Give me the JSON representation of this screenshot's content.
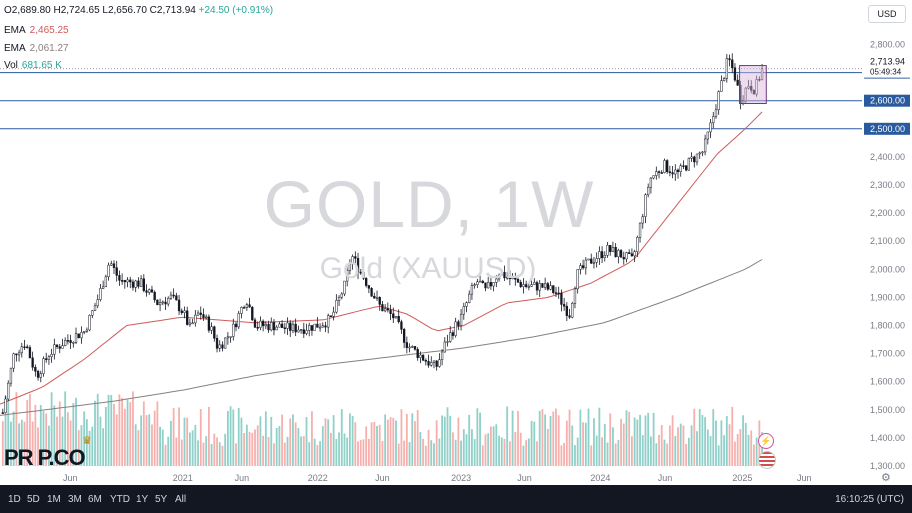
{
  "header": {
    "ohlc": "O2,689.80 H2,724.65 L2,656.70 C2,713.94",
    "change": "+24.50 (+0.91%)",
    "currency": "USD"
  },
  "indicators": [
    {
      "name": "EMA",
      "value": "2,465.25"
    },
    {
      "name": "EMA",
      "value": "2,061.27"
    },
    {
      "name": "Vol",
      "value": "681.65 K"
    }
  ],
  "watermark": {
    "symbol": "GOLD, 1W",
    "name": "Gold (XAUUSD)"
  },
  "logo": {
    "text": "PR P.CO"
  },
  "price_labels": {
    "last": "2,713.94",
    "countdown": "05:49:34",
    "levels": [
      "2,700.00",
      "2,600.00",
      "2,500.00"
    ]
  },
  "time_ranges": [
    "1D",
    "5D",
    "1M",
    "3M",
    "6M",
    "YTD",
    "1Y",
    "5Y",
    "All"
  ],
  "clock": "16:10:25 (UTC)",
  "colors": {
    "up": "#26a69a",
    "down": "#ef5350",
    "vol_up": "#8fd0c9",
    "vol_down": "#f5b0ae",
    "ema_fast": "#d05a5a",
    "ema_slow": "#8a7f7f",
    "box": "#d7b4dc",
    "level": "#2a5a9e"
  },
  "chart_data": {
    "type": "candlestick",
    "title": "GOLD, 1W",
    "y_axis": {
      "ticks": [
        1300,
        1400,
        1500,
        1600,
        1700,
        1800,
        1900,
        2000,
        2100,
        2200,
        2300,
        2400,
        2500,
        2600,
        2700,
        2800
      ],
      "tick_labels": [
        "1,300.00",
        "1,400.00",
        "1,500.00",
        "1,600.00",
        "1,700.00",
        "1,800.00",
        "1,900.00",
        "2,000.00",
        "2,100.00",
        "2,200.00",
        "2,300.00",
        "2,400.00",
        "2,500.00",
        "2,600.00",
        "2,700.00",
        "2,800.00"
      ],
      "range": [
        1300,
        2870
      ]
    },
    "x_axis": {
      "labels": [
        "Jun",
        "2021",
        "Jun",
        "2022",
        "Jun",
        "2023",
        "Jun",
        "2024",
        "Jun",
        "2025",
        "Jun"
      ],
      "positions": [
        0.2,
        1.0,
        1.42,
        1.96,
        2.42,
        2.98,
        3.43,
        3.97,
        4.43,
        4.98,
        5.42
      ],
      "range": [
        -0.3,
        6.0
      ]
    },
    "horizontal_levels": [
      2700,
      2600,
      2500
    ],
    "range_box": {
      "x": [
        4.96,
        5.15
      ],
      "y": [
        2590,
        2725
      ]
    },
    "close_keypoints": [
      [
        -0.28,
        1490
      ],
      [
        -0.2,
        1700
      ],
      [
        -0.12,
        1740
      ],
      [
        -0.04,
        1620
      ],
      [
        0.05,
        1700
      ],
      [
        0.15,
        1740
      ],
      [
        0.3,
        1780
      ],
      [
        0.4,
        1900
      ],
      [
        0.48,
        2030
      ],
      [
        0.55,
        1960
      ],
      [
        0.7,
        1950
      ],
      [
        0.82,
        1880
      ],
      [
        0.92,
        1900
      ],
      [
        1.0,
        1850
      ],
      [
        1.05,
        1790
      ],
      [
        1.12,
        1850
      ],
      [
        1.2,
        1790
      ],
      [
        1.25,
        1720
      ],
      [
        1.35,
        1780
      ],
      [
        1.45,
        1900
      ],
      [
        1.52,
        1800
      ],
      [
        1.65,
        1800
      ],
      [
        1.75,
        1790
      ],
      [
        1.85,
        1790
      ],
      [
        1.95,
        1800
      ],
      [
        2.05,
        1820
      ],
      [
        2.15,
        1940
      ],
      [
        2.2,
        2050
      ],
      [
        2.3,
        1960
      ],
      [
        2.4,
        1870
      ],
      [
        2.5,
        1830
      ],
      [
        2.6,
        1730
      ],
      [
        2.72,
        1680
      ],
      [
        2.8,
        1650
      ],
      [
        2.88,
        1750
      ],
      [
        2.98,
        1830
      ],
      [
        3.05,
        1920
      ],
      [
        3.1,
        1960
      ],
      [
        3.15,
        1920
      ],
      [
        3.25,
        1990
      ],
      [
        3.35,
        1960
      ],
      [
        3.45,
        1940
      ],
      [
        3.55,
        1940
      ],
      [
        3.65,
        1920
      ],
      [
        3.75,
        1840
      ],
      [
        3.8,
        1980
      ],
      [
        3.9,
        2030
      ],
      [
        4.02,
        2070
      ],
      [
        4.12,
        2050
      ],
      [
        4.2,
        2030
      ],
      [
        4.25,
        2150
      ],
      [
        4.32,
        2320
      ],
      [
        4.42,
        2370
      ],
      [
        4.52,
        2340
      ],
      [
        4.62,
        2390
      ],
      [
        4.7,
        2420
      ],
      [
        4.76,
        2520
      ],
      [
        4.82,
        2640
      ],
      [
        4.88,
        2750
      ],
      [
        4.92,
        2700
      ],
      [
        4.97,
        2600
      ],
      [
        5.02,
        2660
      ],
      [
        5.07,
        2640
      ],
      [
        5.12,
        2713.94
      ]
    ],
    "ema_fast_keypoints": [
      [
        -0.3,
        1520
      ],
      [
        0.0,
        1580
      ],
      [
        0.3,
        1680
      ],
      [
        0.6,
        1800
      ],
      [
        1.0,
        1830
      ],
      [
        1.5,
        1810
      ],
      [
        2.0,
        1820
      ],
      [
        2.4,
        1870
      ],
      [
        2.6,
        1840
      ],
      [
        2.8,
        1780
      ],
      [
        3.0,
        1800
      ],
      [
        3.3,
        1880
      ],
      [
        3.6,
        1900
      ],
      [
        3.9,
        1950
      ],
      [
        4.2,
        2030
      ],
      [
        4.5,
        2220
      ],
      [
        4.8,
        2410
      ],
      [
        5.0,
        2500
      ],
      [
        5.12,
        2560
      ]
    ],
    "ema_slow_keypoints": [
      [
        -0.3,
        1480
      ],
      [
        0.5,
        1530
      ],
      [
        1.0,
        1570
      ],
      [
        1.5,
        1620
      ],
      [
        2.0,
        1660
      ],
      [
        2.5,
        1690
      ],
      [
        3.0,
        1720
      ],
      [
        3.5,
        1760
      ],
      [
        4.0,
        1810
      ],
      [
        4.5,
        1900
      ],
      [
        5.0,
        2000
      ],
      [
        5.12,
        2035
      ]
    ]
  }
}
